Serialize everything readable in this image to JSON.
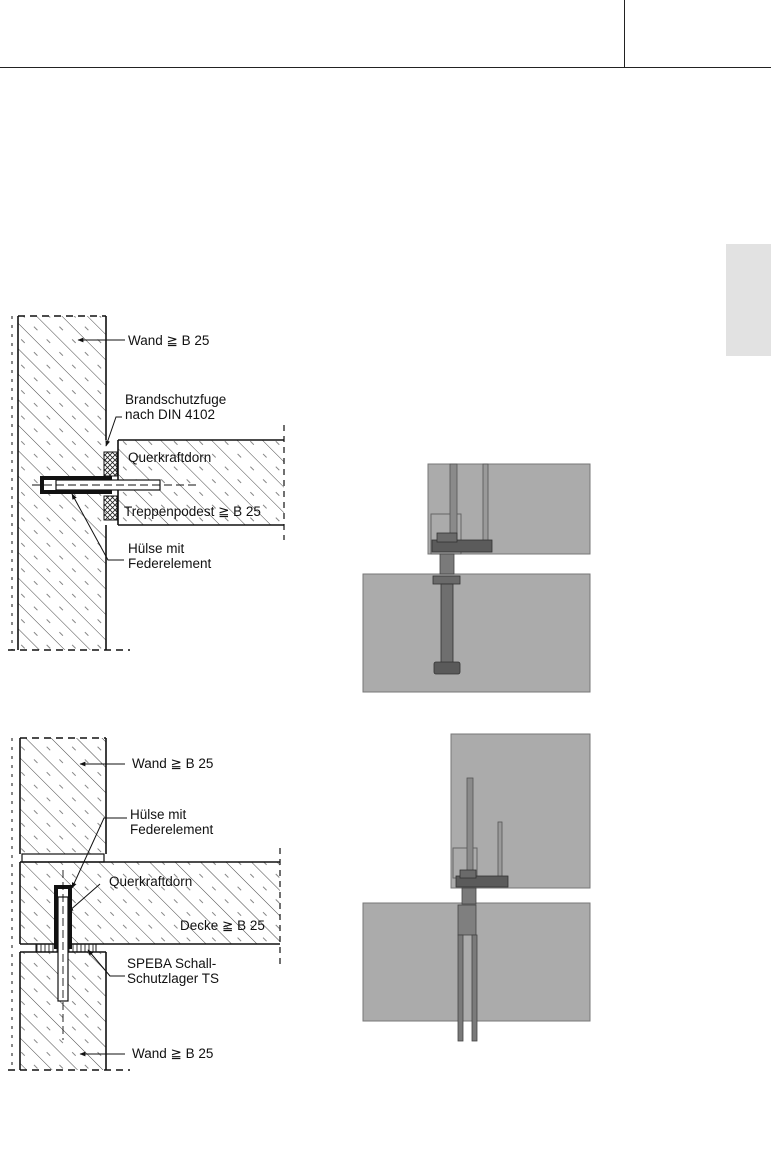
{
  "diagram_top": {
    "wall_label": "Wand ≧ B 25",
    "fire_joint_label_1": "Brandschutzfuge",
    "fire_joint_label_2": "nach DIN 4102",
    "dowel_label": "Querkraftdorn",
    "landing_label": "Treppenpodest ≧ B 25",
    "sleeve_label_1": "Hülse mit",
    "sleeve_label_2": "Federelement"
  },
  "diagram_bottom": {
    "wall_upper_label": "Wand ≧ B 25",
    "sleeve_label_1": "Hülse mit",
    "sleeve_label_2": "Federelement",
    "dowel_label": "Querkraftdorn",
    "slab_label": "Decke ≧ B 25",
    "bearing_label_1": "SPEBA Schall-",
    "bearing_label_2": "Schutzlager TS",
    "wall_lower_label": "Wand ≧ B 25"
  },
  "colors": {
    "photo_bg": "#a9a9a9",
    "tab": "#e2e2e2"
  }
}
